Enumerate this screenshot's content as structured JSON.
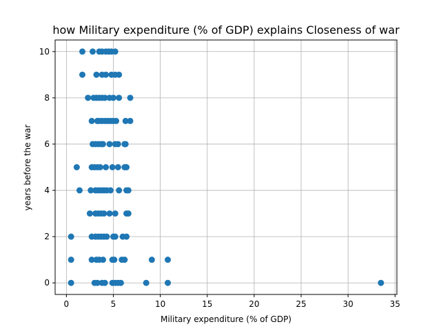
{
  "chart_data": {
    "type": "scatter",
    "title": "how Military expenditure (% of GDP) explains Closeness of war",
    "xlabel": "Military expenditure (% of GDP)",
    "ylabel": "years before the war",
    "xlim": [
      -1.2,
      35.2
    ],
    "ylim": [
      -0.5,
      10.5
    ],
    "xticks": [
      0,
      5,
      10,
      15,
      20,
      25,
      30,
      35
    ],
    "yticks": [
      0,
      2,
      4,
      6,
      8,
      10
    ],
    "grid": true,
    "marker_color": "#1f77b4",
    "series": [
      {
        "points": [
          {
            "x": 0.5,
            "y": 0
          },
          {
            "x": 3.0,
            "y": 0
          },
          {
            "x": 3.3,
            "y": 0
          },
          {
            "x": 3.8,
            "y": 0
          },
          {
            "x": 4.1,
            "y": 0
          },
          {
            "x": 4.9,
            "y": 0
          },
          {
            "x": 5.2,
            "y": 0
          },
          {
            "x": 5.5,
            "y": 0
          },
          {
            "x": 5.8,
            "y": 0
          },
          {
            "x": 8.5,
            "y": 0
          },
          {
            "x": 10.8,
            "y": 0
          },
          {
            "x": 33.5,
            "y": 0
          },
          {
            "x": 0.5,
            "y": 1
          },
          {
            "x": 2.7,
            "y": 1
          },
          {
            "x": 3.2,
            "y": 1
          },
          {
            "x": 3.5,
            "y": 1
          },
          {
            "x": 3.9,
            "y": 1
          },
          {
            "x": 4.9,
            "y": 1
          },
          {
            "x": 5.1,
            "y": 1
          },
          {
            "x": 5.9,
            "y": 1
          },
          {
            "x": 6.2,
            "y": 1
          },
          {
            "x": 9.1,
            "y": 1
          },
          {
            "x": 10.8,
            "y": 1
          },
          {
            "x": 0.5,
            "y": 2
          },
          {
            "x": 2.7,
            "y": 2
          },
          {
            "x": 3.1,
            "y": 2
          },
          {
            "x": 3.4,
            "y": 2
          },
          {
            "x": 3.7,
            "y": 2
          },
          {
            "x": 4.0,
            "y": 2
          },
          {
            "x": 4.3,
            "y": 2
          },
          {
            "x": 5.0,
            "y": 2
          },
          {
            "x": 5.2,
            "y": 2
          },
          {
            "x": 6.0,
            "y": 2
          },
          {
            "x": 6.4,
            "y": 2
          },
          {
            "x": 2.5,
            "y": 3
          },
          {
            "x": 3.1,
            "y": 3
          },
          {
            "x": 3.4,
            "y": 3
          },
          {
            "x": 3.7,
            "y": 3
          },
          {
            "x": 4.0,
            "y": 3
          },
          {
            "x": 4.6,
            "y": 3
          },
          {
            "x": 5.2,
            "y": 3
          },
          {
            "x": 6.4,
            "y": 3
          },
          {
            "x": 6.6,
            "y": 3
          },
          {
            "x": 1.4,
            "y": 4
          },
          {
            "x": 2.6,
            "y": 4
          },
          {
            "x": 3.1,
            "y": 4
          },
          {
            "x": 3.4,
            "y": 4
          },
          {
            "x": 3.7,
            "y": 4
          },
          {
            "x": 4.0,
            "y": 4
          },
          {
            "x": 4.3,
            "y": 4
          },
          {
            "x": 4.7,
            "y": 4
          },
          {
            "x": 5.6,
            "y": 4
          },
          {
            "x": 6.4,
            "y": 4
          },
          {
            "x": 6.6,
            "y": 4
          },
          {
            "x": 1.1,
            "y": 5
          },
          {
            "x": 2.7,
            "y": 5
          },
          {
            "x": 3.0,
            "y": 5
          },
          {
            "x": 3.3,
            "y": 5
          },
          {
            "x": 3.6,
            "y": 5
          },
          {
            "x": 4.2,
            "y": 5
          },
          {
            "x": 4.9,
            "y": 5
          },
          {
            "x": 5.5,
            "y": 5
          },
          {
            "x": 6.2,
            "y": 5
          },
          {
            "x": 6.4,
            "y": 5
          },
          {
            "x": 2.8,
            "y": 6
          },
          {
            "x": 3.1,
            "y": 6
          },
          {
            "x": 3.4,
            "y": 6
          },
          {
            "x": 3.7,
            "y": 6
          },
          {
            "x": 3.9,
            "y": 6
          },
          {
            "x": 4.6,
            "y": 6
          },
          {
            "x": 5.2,
            "y": 6
          },
          {
            "x": 5.5,
            "y": 6
          },
          {
            "x": 6.2,
            "y": 6
          },
          {
            "x": 6.3,
            "y": 6
          },
          {
            "x": 2.7,
            "y": 7
          },
          {
            "x": 3.3,
            "y": 7
          },
          {
            "x": 3.5,
            "y": 7
          },
          {
            "x": 3.8,
            "y": 7
          },
          {
            "x": 4.1,
            "y": 7
          },
          {
            "x": 4.4,
            "y": 7
          },
          {
            "x": 4.7,
            "y": 7
          },
          {
            "x": 5.0,
            "y": 7
          },
          {
            "x": 5.3,
            "y": 7
          },
          {
            "x": 6.3,
            "y": 7
          },
          {
            "x": 6.8,
            "y": 7
          },
          {
            "x": 2.3,
            "y": 8
          },
          {
            "x": 2.9,
            "y": 8
          },
          {
            "x": 3.2,
            "y": 8
          },
          {
            "x": 3.5,
            "y": 8
          },
          {
            "x": 3.8,
            "y": 8
          },
          {
            "x": 4.1,
            "y": 8
          },
          {
            "x": 4.6,
            "y": 8
          },
          {
            "x": 5.0,
            "y": 8
          },
          {
            "x": 5.6,
            "y": 8
          },
          {
            "x": 6.8,
            "y": 8
          },
          {
            "x": 1.7,
            "y": 9
          },
          {
            "x": 3.2,
            "y": 9
          },
          {
            "x": 3.8,
            "y": 9
          },
          {
            "x": 4.2,
            "y": 9
          },
          {
            "x": 4.8,
            "y": 9
          },
          {
            "x": 5.2,
            "y": 9
          },
          {
            "x": 5.6,
            "y": 9
          },
          {
            "x": 1.7,
            "y": 10
          },
          {
            "x": 2.8,
            "y": 10
          },
          {
            "x": 3.5,
            "y": 10
          },
          {
            "x": 3.8,
            "y": 10
          },
          {
            "x": 4.2,
            "y": 10
          },
          {
            "x": 4.5,
            "y": 10
          },
          {
            "x": 4.8,
            "y": 10
          },
          {
            "x": 5.2,
            "y": 10
          }
        ]
      }
    ]
  }
}
